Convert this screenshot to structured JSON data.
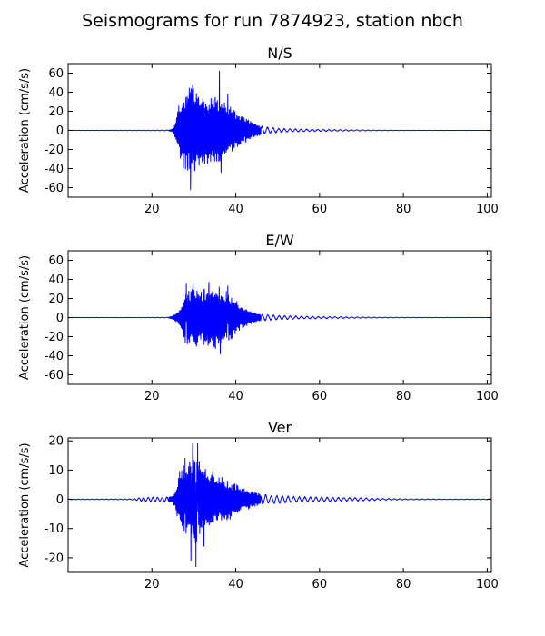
{
  "title": "Seismograms for run 7874923, station nbch",
  "line_color": "#0000ff",
  "chart_data": [
    {
      "type": "line",
      "title": "N/S",
      "ylabel": "Acceleration (cm/s/s)",
      "xlim": [
        0,
        101
      ],
      "ylim": [
        -70,
        70
      ],
      "xticks": [
        20,
        40,
        60,
        80,
        100
      ],
      "yticks": [
        60,
        40,
        20,
        0,
        -20,
        -40,
        -60
      ],
      "envelope": {
        "t": [
          0,
          20,
          24,
          25,
          25.8,
          26.5,
          27.5,
          28.5,
          29.5,
          30.5,
          32,
          34,
          36,
          37,
          38.5,
          40,
          42,
          44,
          46,
          48,
          50,
          52,
          55,
          58,
          62,
          66,
          70,
          75,
          80,
          90,
          101
        ],
        "a": [
          0.1,
          0.3,
          0.5,
          2,
          12,
          28,
          40,
          48,
          55,
          44,
          40,
          38,
          35,
          32,
          28,
          22,
          15,
          9,
          5,
          3.5,
          2.5,
          2,
          1.6,
          1.3,
          1,
          0.8,
          0.6,
          0.3,
          0.2,
          0.1,
          0.1
        ]
      },
      "peaks": [
        {
          "t": 29.2,
          "v": -62
        },
        {
          "t": 29.7,
          "v": 47
        },
        {
          "t": 30.2,
          "v": -42
        },
        {
          "t": 36.1,
          "v": 62
        },
        {
          "t": 36.5,
          "v": -44
        },
        {
          "t": 32.6,
          "v": -35
        },
        {
          "t": 38.1,
          "v": 38
        }
      ]
    },
    {
      "type": "line",
      "title": "E/W",
      "ylabel": "Acceleration (cm/s/s)",
      "xlim": [
        0,
        101
      ],
      "ylim": [
        -70,
        70
      ],
      "xticks": [
        20,
        40,
        60,
        80,
        100
      ],
      "yticks": [
        60,
        40,
        20,
        0,
        -20,
        -40,
        -60
      ],
      "envelope": {
        "t": [
          0,
          20,
          24,
          25,
          26,
          27,
          28,
          30,
          32,
          34,
          36,
          38,
          39.5,
          41,
          43,
          45,
          47,
          50,
          53,
          57,
          62,
          68,
          75,
          85,
          101
        ],
        "a": [
          0.1,
          0.2,
          0.5,
          2,
          6,
          15,
          28,
          32,
          30,
          33,
          33,
          28,
          22,
          14,
          8,
          5,
          3.5,
          2.5,
          2,
          1.5,
          1.1,
          0.8,
          0.4,
          0.2,
          0.1
        ]
      },
      "peaks": [
        {
          "t": 33.6,
          "v": 37
        },
        {
          "t": 36.3,
          "v": -38
        },
        {
          "t": 28.2,
          "v": 35
        },
        {
          "t": 29.8,
          "v": 35
        },
        {
          "t": 30.6,
          "v": -30
        },
        {
          "t": 38.1,
          "v": 33
        }
      ]
    },
    {
      "type": "line",
      "title": "Ver",
      "ylabel": "Acceleration (cm/s/s)",
      "xlim": [
        0,
        101
      ],
      "ylim": [
        -25,
        21
      ],
      "xticks": [
        20,
        40,
        60,
        80,
        100
      ],
      "yticks": [
        20,
        10,
        0,
        -10,
        -20
      ],
      "envelope": {
        "t": [
          0,
          15,
          18,
          20,
          22,
          24,
          25,
          25.8,
          26.5,
          27.5,
          28.5,
          29.5,
          30.5,
          31.5,
          33,
          35,
          37,
          38.5,
          40,
          42,
          44,
          46,
          48,
          51,
          54,
          58,
          62,
          66,
          70,
          75,
          80,
          90,
          101
        ],
        "a": [
          0.1,
          0.15,
          0.8,
          0.8,
          0.8,
          1,
          1.5,
          4,
          10,
          13,
          13,
          16,
          18,
          14,
          11,
          9.5,
          8,
          7,
          5.5,
          4,
          2.8,
          2,
          1.6,
          1.4,
          1.1,
          0.9,
          0.8,
          0.7,
          0.6,
          0.3,
          0.2,
          0.1,
          0.1
        ]
      },
      "peaks": [
        {
          "t": 30.5,
          "v": -23
        },
        {
          "t": 29.3,
          "v": -21
        },
        {
          "t": 29.7,
          "v": 19
        },
        {
          "t": 30.9,
          "v": 19
        },
        {
          "t": 32.4,
          "v": -16
        },
        {
          "t": 27.9,
          "v": 14
        }
      ]
    }
  ]
}
